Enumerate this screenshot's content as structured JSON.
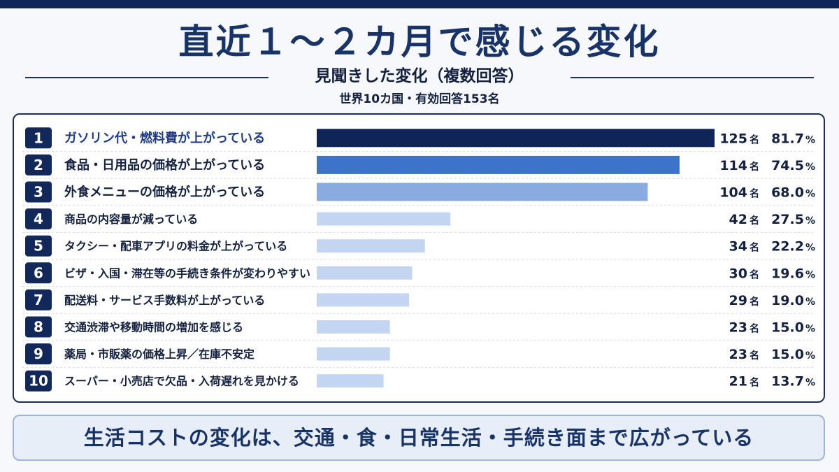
{
  "title": "直近１～２カ月で感じる変化",
  "subtitle": "見聞きした変化（複数回答）",
  "note": "世界10カ国・有効回答153名",
  "footer": "生活コストの変化は、交通・食・日常生活・手続き面まで広がっている",
  "colors": {
    "rank_badge": "#13285a",
    "bar_top1": "#0f2457",
    "bar_top2": "#3d73c9",
    "bar_top3": "#8aabe0",
    "bar_rest": "#c3d5f1",
    "highlight_text": "#1f3c88"
  },
  "chart_data": {
    "type": "bar",
    "orientation": "horizontal",
    "unit_count": "名",
    "unit_percent": "%",
    "xlim": [
      0,
      125
    ],
    "grid": false,
    "legend": "none",
    "items": [
      {
        "rank": "1",
        "label": "ガソリン代・燃料費が上がっている",
        "count": 125,
        "percent": "81.7"
      },
      {
        "rank": "2",
        "label": "食品・日用品の価格が上がっている",
        "count": 114,
        "percent": "74.5"
      },
      {
        "rank": "3",
        "label": "外食メニューの価格が上がっている",
        "count": 104,
        "percent": "68.0"
      },
      {
        "rank": "4",
        "label": "商品の内容量が減っている",
        "count": 42,
        "percent": "27.5"
      },
      {
        "rank": "5",
        "label": "タクシー・配車アプリの料金が上がっている",
        "count": 34,
        "percent": "22.2"
      },
      {
        "rank": "6",
        "label": "ビザ・入国・滞在等の手続き条件が変わりやすい",
        "count": 30,
        "percent": "19.6"
      },
      {
        "rank": "7",
        "label": "配送料・サービス手数料が上がっている",
        "count": 29,
        "percent": "19.0"
      },
      {
        "rank": "8",
        "label": "交通渋滞や移動時間の増加を感じる",
        "count": 23,
        "percent": "15.0"
      },
      {
        "rank": "9",
        "label": "薬局・市販薬の価格上昇／在庫不安定",
        "count": 23,
        "percent": "15.0"
      },
      {
        "rank": "10",
        "label": "スーパー・小売店で欠品・入荷遅れを見かける",
        "count": 21,
        "percent": "13.7"
      }
    ]
  }
}
